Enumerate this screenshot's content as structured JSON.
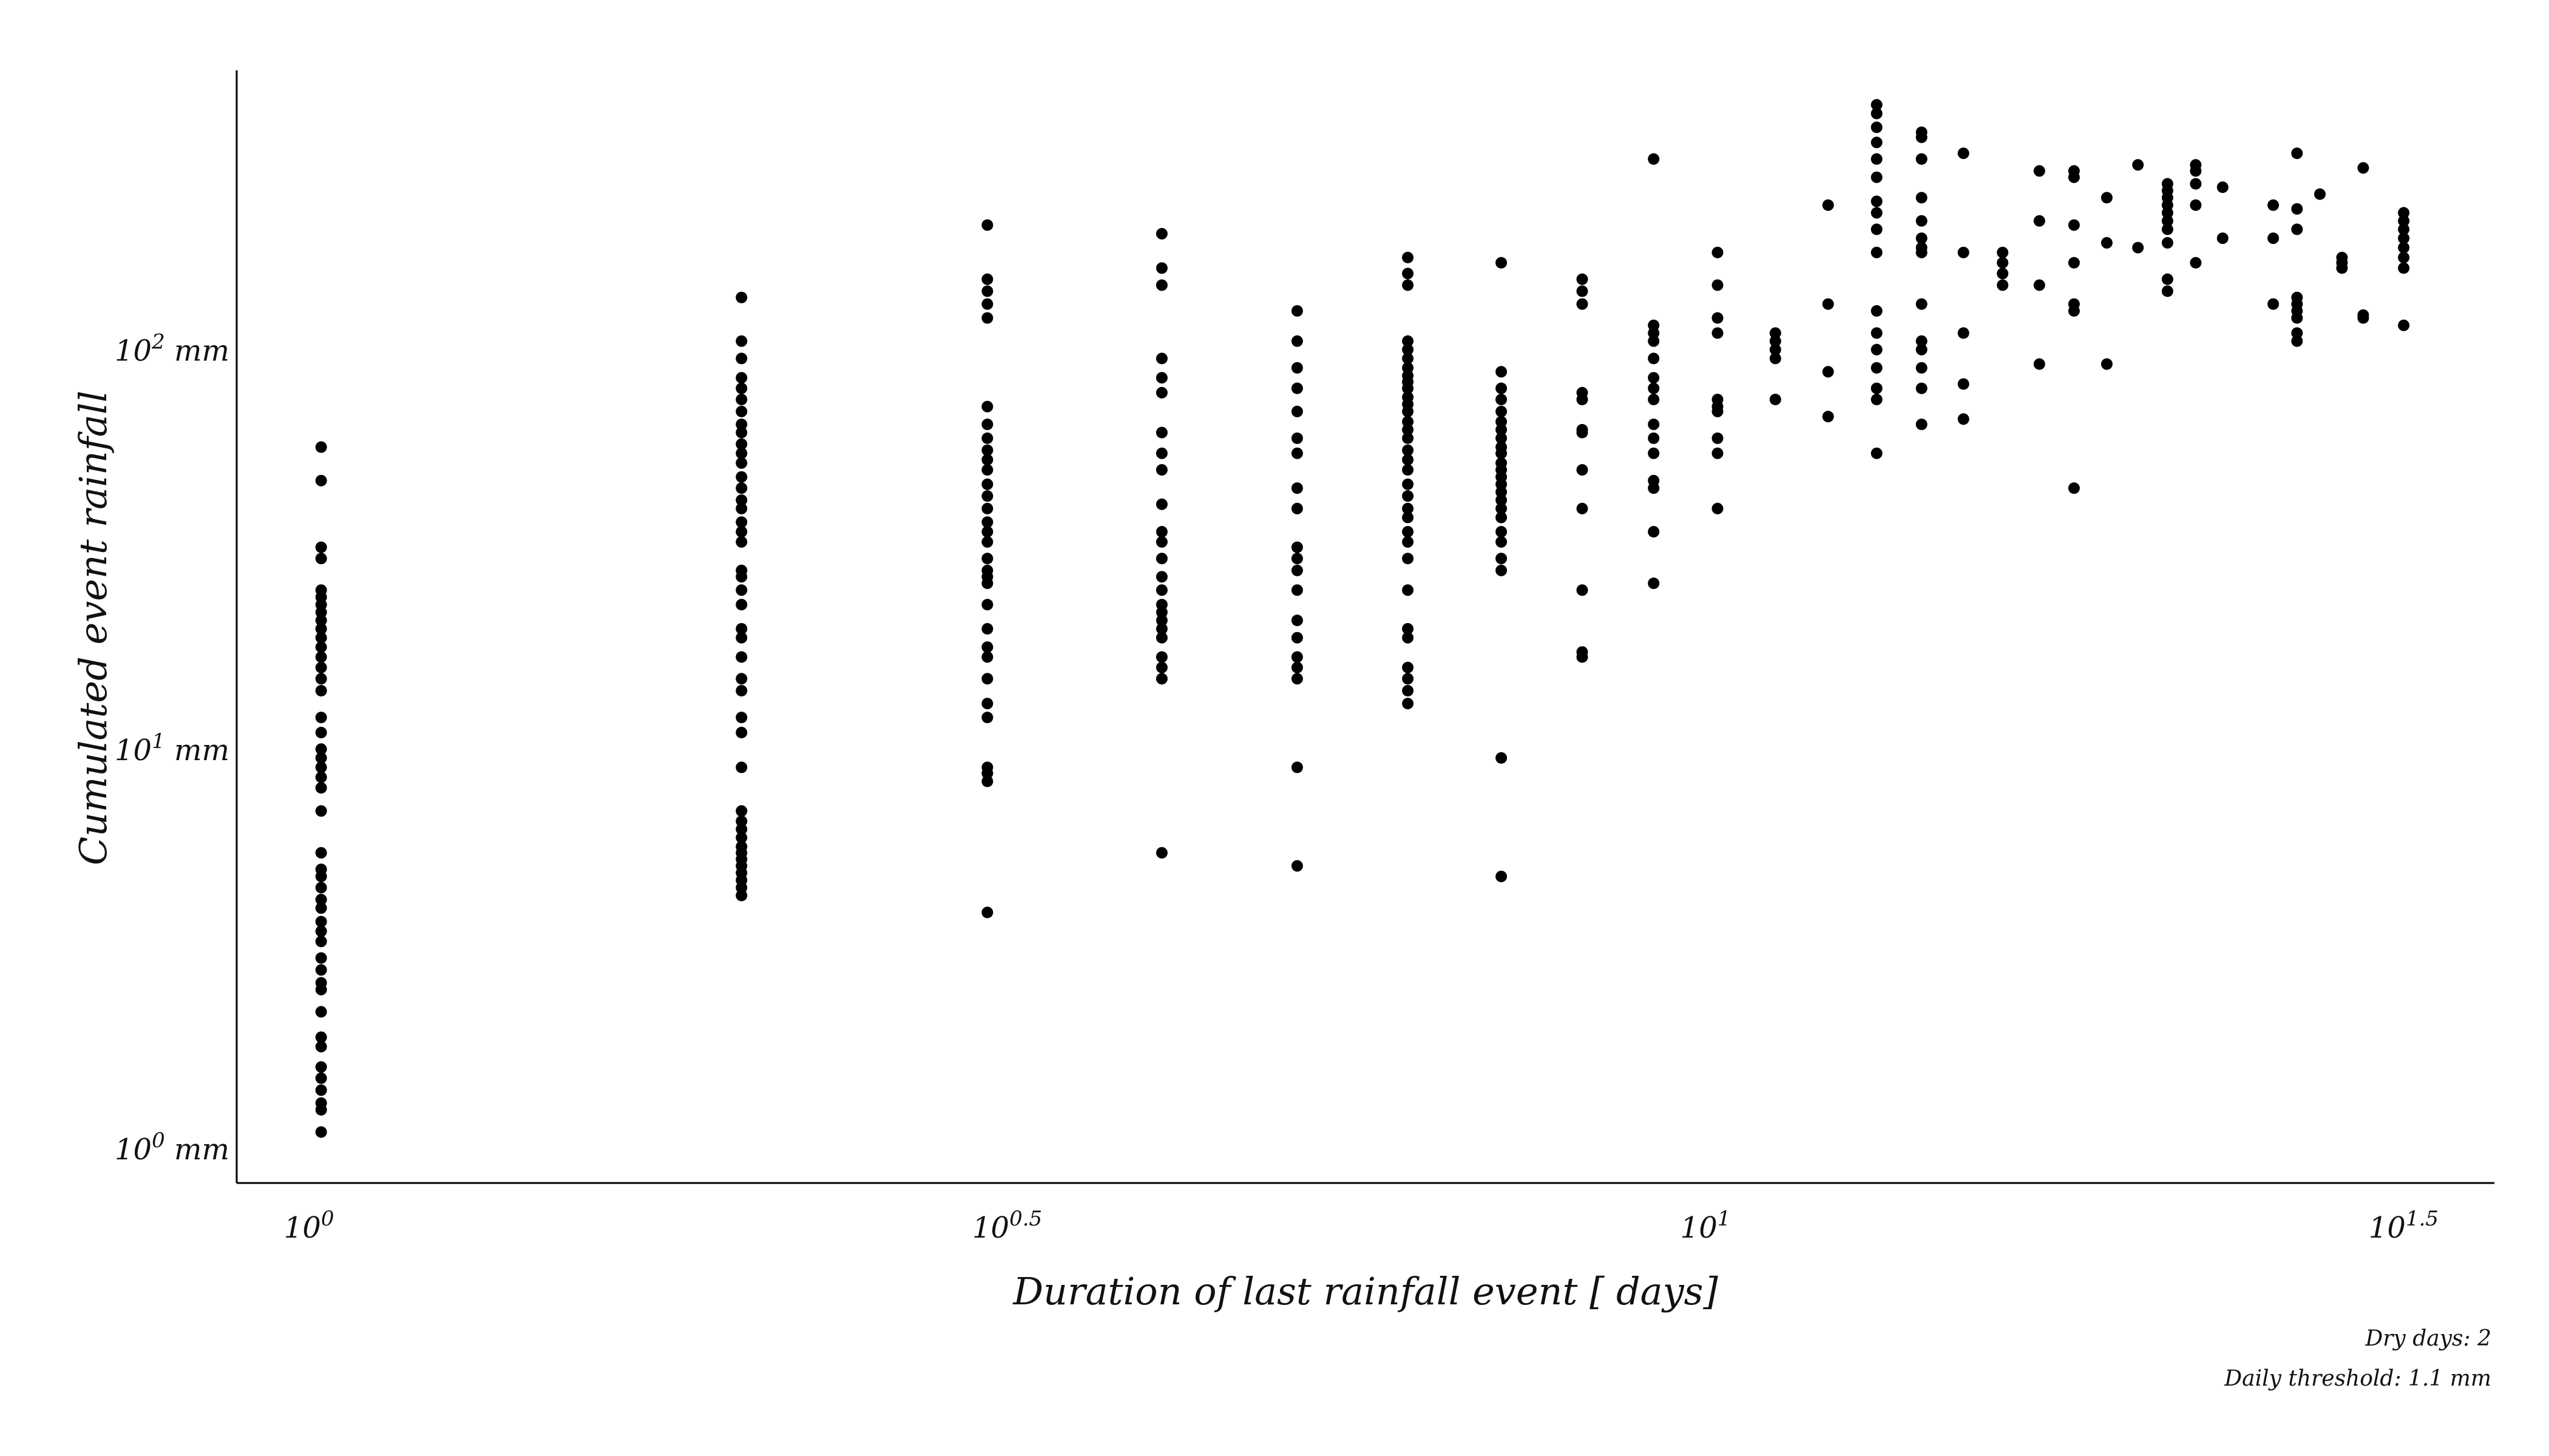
{
  "chart_data": {
    "type": "scatter",
    "title": "",
    "xlabel": "Duration of last rainfall event [ days]",
    "ylabel": "Cumulated event rainfall",
    "x_scale": "log",
    "y_scale": "log",
    "xlim": [
      0.87,
      36
    ],
    "ylim": [
      0.82,
      500
    ],
    "grid": false,
    "marker_color": "#000000",
    "x_ticks": [
      {
        "value": 1,
        "base": "10",
        "exp": "0"
      },
      {
        "value": 3.1623,
        "base": "10",
        "exp": "0.5"
      },
      {
        "value": 10,
        "base": "10",
        "exp": "1"
      },
      {
        "value": 31.623,
        "base": "10",
        "exp": "1.5"
      }
    ],
    "y_ticks": [
      {
        "value": 1,
        "base": "10",
        "exp": "0",
        "unit": "mm"
      },
      {
        "value": 10,
        "base": "10",
        "exp": "1",
        "unit": "mm"
      },
      {
        "value": 100,
        "base": "10",
        "exp": "2",
        "unit": "mm"
      }
    ],
    "annotations": [
      "Dry days: 2",
      "Daily threshold: 1.1 mm"
    ],
    "series": [
      {
        "x": 1,
        "y": [
          1.1,
          1.25,
          1.3,
          1.4,
          1.5,
          1.6,
          1.8,
          1.9,
          2.2,
          2.5,
          2.6,
          2.8,
          3.0,
          3.3,
          3.5,
          3.7,
          4.0,
          4.2,
          4.5,
          4.8,
          5.0,
          5.5,
          7.0,
          8.0,
          8.5,
          9.0,
          9.5,
          10.0,
          11.0,
          12.0,
          14.0,
          15.0,
          16.0,
          17.0,
          18.0,
          19.0,
          20.0,
          21.0,
          22.0,
          23.0,
          24.0,
          25.0,
          30.0,
          32.0,
          47.0,
          57.0
        ]
      },
      {
        "x": 2,
        "y": [
          4.3,
          4.5,
          4.7,
          4.9,
          5.1,
          5.3,
          5.5,
          5.7,
          6.0,
          6.3,
          6.6,
          7.0,
          9.0,
          11.0,
          12.0,
          14.0,
          15.0,
          17.0,
          19.0,
          20.0,
          23.0,
          25.0,
          27.0,
          28.0,
          33.0,
          35.0,
          37.0,
          40.0,
          42.0,
          45.0,
          48.0,
          52.0,
          55.0,
          58.0,
          62.0,
          65.0,
          70.0,
          75.0,
          80.0,
          85.0,
          95.0,
          105.0,
          135.0
        ]
      },
      {
        "x": 3,
        "y": [
          3.9,
          8.3,
          8.7,
          9.0,
          12.0,
          13.0,
          15.0,
          17.0,
          18.0,
          20.0,
          23.0,
          26.0,
          27.0,
          28.0,
          30.0,
          33.0,
          35.0,
          37.0,
          40.0,
          43.0,
          46.0,
          50.0,
          53.0,
          56.0,
          60.0,
          65.0,
          72.0,
          120.0,
          130.0,
          140.0,
          150.0,
          205.0
        ]
      },
      {
        "x": 4,
        "y": [
          5.5,
          15.0,
          16.0,
          17.0,
          19.0,
          20.0,
          21.0,
          22.0,
          23.0,
          25.0,
          27.0,
          30.0,
          33.0,
          35.0,
          41.0,
          50.0,
          55.0,
          62.0,
          78.0,
          85.0,
          95.0,
          145.0,
          160.0,
          195.0
        ]
      },
      {
        "x": 5,
        "y": [
          5.1,
          9.0,
          15.0,
          16.0,
          17.0,
          19.0,
          21.0,
          25.0,
          28.0,
          30.0,
          32.0,
          40.0,
          45.0,
          55.0,
          60.0,
          70.0,
          80.0,
          90.0,
          105.0,
          125.0
        ]
      },
      {
        "x": 6,
        "y": [
          13.0,
          14.0,
          15.0,
          16.0,
          19.0,
          20.0,
          25.0,
          30.0,
          33.0,
          35.0,
          38.0,
          40.0,
          43.0,
          46.0,
          50.0,
          53.0,
          56.0,
          60.0,
          63.0,
          66.0,
          70.0,
          73.0,
          76.0,
          80.0,
          83.0,
          86.0,
          90.0,
          95.0,
          100.0,
          105.0,
          145.0,
          155.0,
          170.0
        ]
      },
      {
        "x": 7,
        "y": [
          4.8,
          9.5,
          28.0,
          30.0,
          33.0,
          35.0,
          38.0,
          40.0,
          42.0,
          44.0,
          46.0,
          48.0,
          50.0,
          52.0,
          55.0,
          57.0,
          60.0,
          63.0,
          66.0,
          70.0,
          75.0,
          80.0,
          88.0,
          165.0
        ]
      },
      {
        "x": 8,
        "y": [
          17.0,
          17.5,
          25.0,
          40.0,
          50.0,
          62.0,
          63.0,
          75.0,
          78.0,
          130.0,
          140.0,
          150.0
        ]
      },
      {
        "x": 9,
        "y": [
          26.0,
          35.0,
          45.0,
          47.0,
          55.0,
          60.0,
          65.0,
          75.0,
          80.0,
          85.0,
          95.0,
          105.0,
          110.0,
          115.0,
          300.0
        ]
      },
      {
        "x": 10,
        "y": [
          40.0,
          55.0,
          60.0,
          70.0,
          72.0,
          75.0,
          110.0,
          120.0,
          145.0,
          175.0
        ]
      },
      {
        "x": 11,
        "y": [
          75.0,
          95.0,
          100.0,
          105.0,
          110.0
        ]
      },
      {
        "x": 12,
        "y": [
          68.0,
          88.0,
          130.0,
          230.0
        ]
      },
      {
        "x": 13,
        "y": [
          55.0,
          75.0,
          80.0,
          90.0,
          100.0,
          110.0,
          125.0,
          175.0,
          200.0,
          220.0,
          235.0,
          270.0,
          300.0,
          330.0,
          360.0,
          390.0,
          410.0
        ]
      },
      {
        "x": 14,
        "y": [
          65.0,
          80.0,
          90.0,
          100.0,
          105.0,
          130.0,
          175.0,
          180.0,
          190.0,
          210.0,
          240.0,
          300.0,
          340.0,
          350.0
        ]
      },
      {
        "x": 15,
        "y": [
          67.0,
          82.0,
          110.0,
          175.0,
          310.0
        ]
      },
      {
        "x": 16,
        "y": [
          145.0,
          155.0,
          165.0,
          175.0
        ]
      },
      {
        "x": 17,
        "y": [
          92.0,
          145.0,
          210.0,
          280.0
        ]
      },
      {
        "x": 18,
        "y": [
          45.0,
          125.0,
          130.0,
          165.0,
          205.0,
          270.0,
          280.0
        ]
      },
      {
        "x": 19,
        "y": [
          92.0,
          185.0,
          240.0
        ]
      },
      {
        "x": 20,
        "y": [
          180.0,
          290.0
        ]
      },
      {
        "x": 21,
        "y": [
          140.0,
          150.0,
          185.0,
          200.0,
          210.0,
          220.0,
          230.0,
          240.0,
          250.0,
          260.0
        ]
      },
      {
        "x": 22,
        "y": [
          165.0,
          230.0,
          260.0,
          280.0,
          290.0
        ]
      },
      {
        "x": 23,
        "y": [
          190.0,
          255.0
        ]
      },
      {
        "x": 25,
        "y": [
          130.0,
          190.0,
          230.0
        ]
      },
      {
        "x": 26,
        "y": [
          105.0,
          110.0,
          120.0,
          125.0,
          130.0,
          135.0,
          200.0,
          225.0,
          310.0
        ]
      },
      {
        "x": 27,
        "y": [
          245.0
        ]
      },
      {
        "x": 28,
        "y": [
          160.0,
          165.0,
          170.0
        ]
      },
      {
        "x": 29,
        "y": [
          120.0,
          122.0,
          285.0
        ]
      },
      {
        "x": 31,
        "y": [
          115.0,
          160.0,
          170.0,
          180.0,
          190.0,
          200.0,
          210.0,
          220.0
        ]
      }
    ]
  }
}
